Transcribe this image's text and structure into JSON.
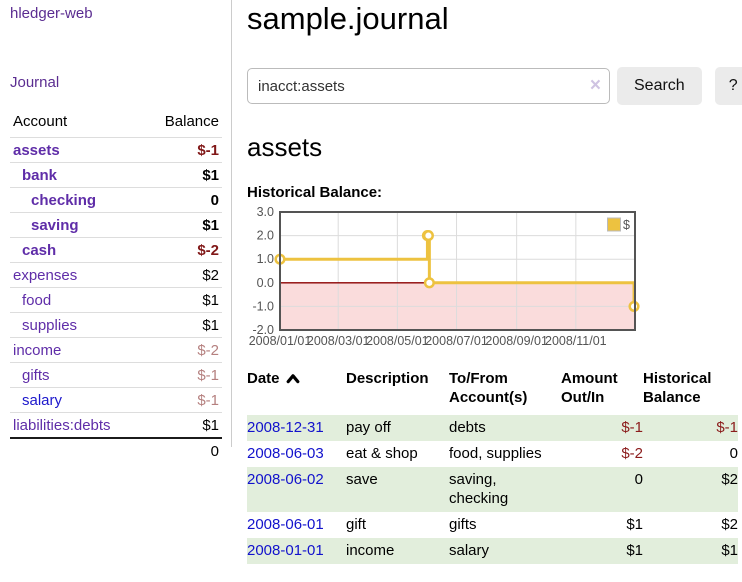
{
  "sidebar": {
    "brand": "hledger-web",
    "nav": {
      "journal": "Journal"
    },
    "accounts_table": {
      "headers": {
        "account": "Account",
        "balance": "Balance"
      },
      "rows": [
        {
          "name": "assets",
          "indent": 1,
          "bold": true,
          "balance": "$-1",
          "neg": "strong"
        },
        {
          "name": "bank",
          "indent": 2,
          "bold": true,
          "balance": "$1"
        },
        {
          "name": "checking",
          "indent": 3,
          "bold": true,
          "balance": "0"
        },
        {
          "name": "saving",
          "indent": 3,
          "bold": true,
          "balance": "$1"
        },
        {
          "name": "cash",
          "indent": 2,
          "bold": true,
          "balance": "$-2",
          "neg": "strong"
        },
        {
          "name": "expenses",
          "indent": 1,
          "bold": false,
          "balance": "$2"
        },
        {
          "name": "food",
          "indent": 2,
          "bold": false,
          "balance": "$1"
        },
        {
          "name": "supplies",
          "indent": 2,
          "bold": false,
          "balance": "$1"
        },
        {
          "name": "income",
          "indent": 1,
          "bold": false,
          "balance": "$-2",
          "neg": "weak"
        },
        {
          "name": "gifts",
          "indent": 2,
          "bold": false,
          "balance": "$-1",
          "neg": "weak"
        },
        {
          "name": "salary",
          "indent": 2,
          "bold": false,
          "balance": "$-1",
          "neg": "weak",
          "link": "blue"
        },
        {
          "name": "liabilities:debts",
          "indent": 1,
          "bold": false,
          "balance": "$1"
        }
      ],
      "total": "0"
    }
  },
  "main": {
    "title": "sample.journal",
    "search": {
      "value": "inacct:assets",
      "clear_icon": "×",
      "button_label": "Search",
      "help_label": "?"
    },
    "account_heading": "assets",
    "chart_label": "Historical Balance:"
  },
  "chart_data": {
    "type": "line",
    "style": "step",
    "title": "Historical Balance:",
    "series": [
      {
        "name": "$",
        "color": "#edc240",
        "points": [
          [
            "2008-01-01",
            1
          ],
          [
            "2008-06-01",
            2
          ],
          [
            "2008-06-02",
            2
          ],
          [
            "2008-06-03",
            0
          ],
          [
            "2008-12-31",
            -1
          ]
        ]
      }
    ],
    "x_range": [
      "2008-01-01",
      "2009-01-01"
    ],
    "x_ticks": [
      {
        "date": "2008-01-01",
        "label": "2008/01/01"
      },
      {
        "date": "2008-03-01",
        "label": "2008/03/01"
      },
      {
        "date": "2008-05-01",
        "label": "2008/05/01"
      },
      {
        "date": "2008-07-01",
        "label": "2008/07/01"
      },
      {
        "date": "2008-09-01",
        "label": "2008/09/01"
      },
      {
        "date": "2008-11-01",
        "label": "2008/11/01"
      }
    ],
    "y_ticks": [
      3.0,
      2.0,
      1.0,
      0.0,
      -1.0,
      -2.0
    ],
    "ylim": [
      -2,
      3
    ],
    "grid": true,
    "legend": {
      "label": "$",
      "position": "top-right"
    },
    "negative_region_color": "#fadcdc",
    "zero_line_color": "#8b0000",
    "border_color": "#545454",
    "grid_color": "#dcdcdc",
    "tick_label_color": "#545454"
  },
  "register": {
    "headers": {
      "date": "Date",
      "sort": "ascending",
      "description": "Description",
      "accounts": "To/From Account(s)",
      "amount": "Amount Out/In",
      "balance": "Historical Balance"
    },
    "rows": [
      {
        "date": "2008-12-31",
        "description": "pay off",
        "accounts": "debts",
        "amount": "$-1",
        "amount_neg": true,
        "balance": "$-1",
        "balance_neg": true
      },
      {
        "date": "2008-06-03",
        "description": "eat & shop",
        "accounts": "food, supplies",
        "amount": "$-2",
        "amount_neg": true,
        "balance": "0",
        "balance_neg": false
      },
      {
        "date": "2008-06-02",
        "description": "save",
        "accounts": "saving, checking",
        "amount": "0",
        "amount_neg": false,
        "balance": "$2",
        "balance_neg": false
      },
      {
        "date": "2008-06-01",
        "description": "gift",
        "accounts": "gifts",
        "amount": "$1",
        "amount_neg": false,
        "balance": "$2",
        "balance_neg": false
      },
      {
        "date": "2008-01-01",
        "description": "income",
        "accounts": "salary",
        "amount": "$1",
        "amount_neg": false,
        "balance": "$1",
        "balance_neg": false
      }
    ]
  },
  "colors": {
    "link_purple": "#5f2da8",
    "link_blue": "#1d18cc",
    "date_link_blue": "#1212cc",
    "negative_strong": "#801717",
    "negative_soft": "#b5807f",
    "register_negative": "#8b1b1b",
    "row_green": "#e2eedc",
    "series_yellow": "#edc240",
    "negative_region_pink": "#fadcdc"
  }
}
